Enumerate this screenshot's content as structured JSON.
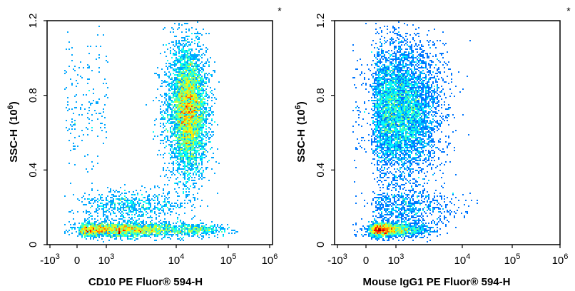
{
  "chart_data": [
    {
      "type": "scatter",
      "subtype": "flow-cytometry-density",
      "title": "",
      "xlabel": "CD10 PE Fluor® 594-H",
      "ylabel": "SSC-H",
      "ylabel_unit_base": "(10",
      "ylabel_unit_exp": "6",
      "ylabel_unit_close": ")",
      "corner_mark": "*",
      "x_scale": "biexponential",
      "x_ticks": [
        {
          "value": -1000,
          "base": "-10",
          "exp": "3"
        },
        {
          "value": 0,
          "base": "0",
          "exp": ""
        },
        {
          "value": 1000,
          "base": "10",
          "exp": "3"
        },
        {
          "value": 10000,
          "base": "10",
          "exp": "4"
        },
        {
          "value": 100000,
          "base": "10",
          "exp": "5"
        },
        {
          "value": 1000000,
          "base": "10",
          "exp": "6"
        }
      ],
      "y_ticks": [
        {
          "value": 0,
          "label": "0"
        },
        {
          "value": 0.4,
          "label": "0.4"
        },
        {
          "value": 0.8,
          "label": "0.8"
        },
        {
          "value": 1.2,
          "label": "1.2"
        }
      ],
      "ylim": [
        0,
        1.2
      ],
      "grid": false,
      "legend": "none",
      "populations": [
        {
          "x_center": 1500,
          "y_center": 0.08,
          "x_spread_decades": 0.45,
          "y_spread": 0.02,
          "weight": 0.22
        },
        {
          "x_center": 4000,
          "y_center": 0.08,
          "x_spread_decades": 0.55,
          "y_spread": 0.02,
          "weight": 0.06
        },
        {
          "x_center": 2500,
          "y_center": 0.21,
          "x_spread_decades": 0.35,
          "y_spread": 0.04,
          "weight": 0.07
        },
        {
          "x_center": 17000,
          "y_center": 0.72,
          "x_spread_decades": 0.18,
          "y_spread": 0.17,
          "weight": 0.62
        },
        {
          "x_center": 30000,
          "y_center": 0.08,
          "x_spread_decades": 0.25,
          "y_spread": 0.015,
          "weight": 0.03
        }
      ]
    },
    {
      "type": "scatter",
      "subtype": "flow-cytometry-density",
      "title": "",
      "xlabel": "Mouse IgG1 PE Fluor® 594-H",
      "ylabel": "SSC-H",
      "ylabel_unit_base": "(10",
      "ylabel_unit_exp": "6",
      "ylabel_unit_close": ")",
      "corner_mark": "*",
      "x_scale": "biexponential",
      "x_ticks": [
        {
          "value": -1000,
          "base": "-10",
          "exp": "3"
        },
        {
          "value": 0,
          "base": "0",
          "exp": ""
        },
        {
          "value": 1000,
          "base": "10",
          "exp": "3"
        },
        {
          "value": 10000,
          "base": "10",
          "exp": "4"
        },
        {
          "value": 100000,
          "base": "10",
          "exp": "5"
        },
        {
          "value": 1000000,
          "base": "10",
          "exp": "6"
        }
      ],
      "y_ticks": [
        {
          "value": 0,
          "label": "0"
        },
        {
          "value": 0.4,
          "label": "0.4"
        },
        {
          "value": 0.8,
          "label": "0.8"
        },
        {
          "value": 1.2,
          "label": "1.2"
        }
      ],
      "ylim": [
        0,
        1.2
      ],
      "grid": false,
      "legend": "none",
      "populations": [
        {
          "x_center": 700,
          "y_center": 0.08,
          "x_spread_decades": 0.3,
          "y_spread": 0.02,
          "weight": 0.25
        },
        {
          "x_center": 1500,
          "y_center": 0.2,
          "x_spread_decades": 0.35,
          "y_spread": 0.05,
          "weight": 0.08
        },
        {
          "x_center": 1200,
          "y_center": 0.72,
          "x_spread_decades": 0.28,
          "y_spread": 0.18,
          "weight": 0.67
        }
      ]
    }
  ]
}
